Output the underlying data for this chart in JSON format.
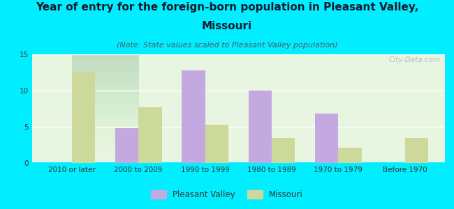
{
  "title_line1": "Year of entry for the foreign-born population in Pleasant Valley,",
  "title_line2": "Missouri",
  "subtitle": "(Note: State values scaled to Pleasant Valley population)",
  "categories": [
    "2010 or later",
    "2000 to 2009",
    "1990 to 1999",
    "1980 to 1989",
    "1970 to 1979",
    "Before 1970"
  ],
  "pleasant_valley": [
    0,
    4.8,
    12.8,
    10.0,
    6.8,
    0
  ],
  "missouri": [
    12.5,
    7.7,
    5.3,
    3.5,
    2.1,
    3.5
  ],
  "pv_color": "#c4a8e0",
  "mo_color": "#cdd99a",
  "background_color": "#00eeff",
  "plot_bg_top": "#e8f5e0",
  "plot_bg_bottom": "#f8fff4",
  "ylim": [
    0,
    15
  ],
  "yticks": [
    0,
    5,
    10,
    15
  ],
  "bar_width": 0.35,
  "title_fontsize": 11,
  "subtitle_fontsize": 8,
  "tick_fontsize": 7.5,
  "legend_labels": [
    "Pleasant Valley",
    "Missouri"
  ],
  "watermark": "City-Data.com"
}
